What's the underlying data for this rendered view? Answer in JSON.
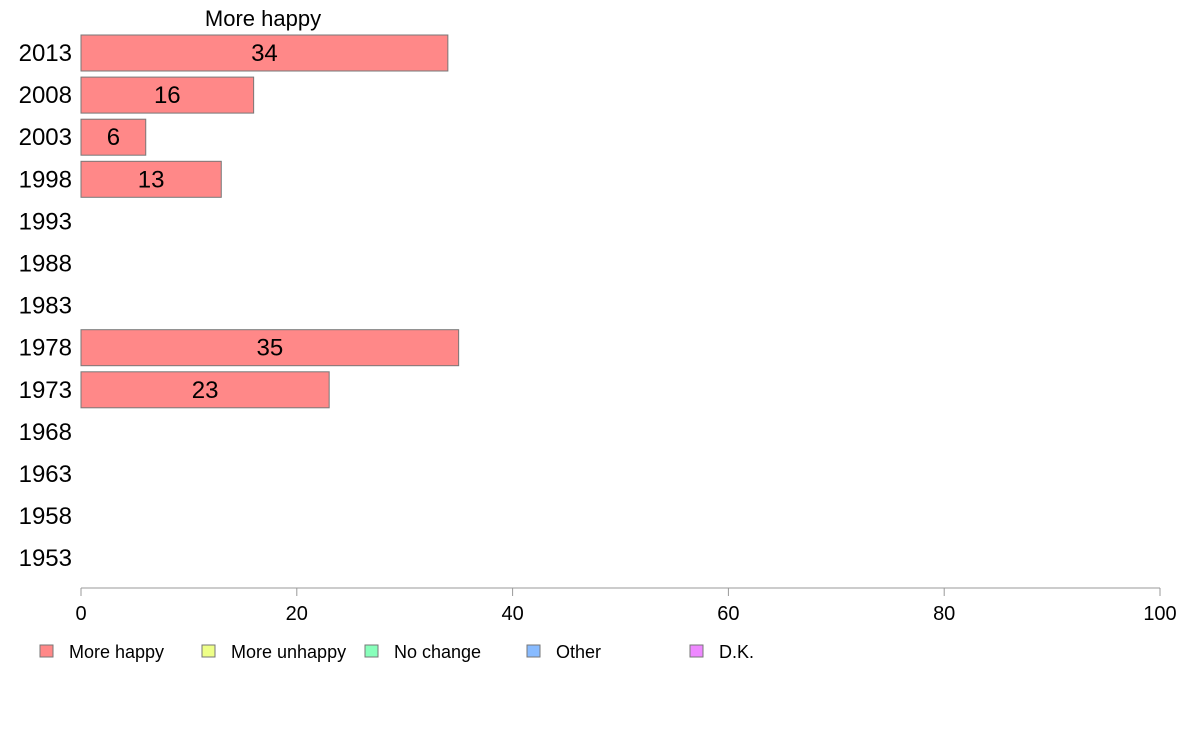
{
  "chart_data": {
    "type": "bar",
    "orientation": "horizontal",
    "title": "",
    "xlabel": "",
    "ylabel": "",
    "xlim": [
      0,
      100
    ],
    "xticks": [
      0,
      20,
      40,
      60,
      80,
      100
    ],
    "categories": [
      "2013",
      "2008",
      "2003",
      "1998",
      "1993",
      "1988",
      "1983",
      "1978",
      "1973",
      "1968",
      "1963",
      "1958",
      "1953"
    ],
    "series": [
      {
        "name": "More happy",
        "color": "#ff8888",
        "values": [
          34,
          16,
          6,
          13,
          null,
          null,
          null,
          35,
          23,
          null,
          null,
          null,
          null
        ]
      }
    ],
    "series_title": "More happy",
    "grid": false,
    "legend": {
      "placement": "bottom",
      "items": [
        {
          "label": "More happy",
          "color": "#ff8888"
        },
        {
          "label": "More unhappy",
          "color": "#eeff88"
        },
        {
          "label": "No change",
          "color": "#88ffbb"
        },
        {
          "label": "Other",
          "color": "#88bbff"
        },
        {
          "label": "D.K.",
          "color": "#ee88ff"
        }
      ]
    }
  }
}
